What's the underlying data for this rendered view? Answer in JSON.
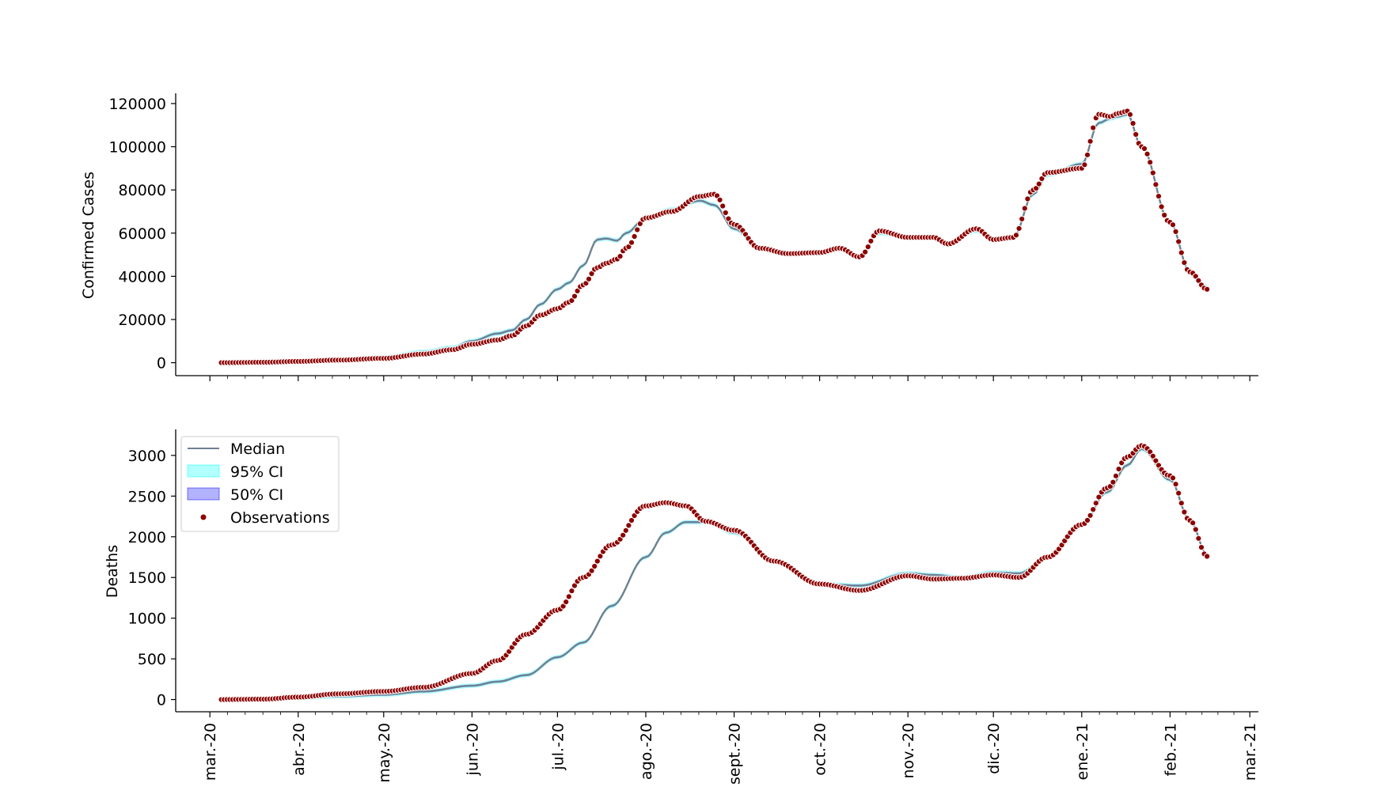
{
  "chart_data": [
    {
      "type": "line",
      "ylabel": "Confirmed Cases",
      "ylim": [
        -6000,
        124000
      ],
      "yticks": [
        0,
        20000,
        40000,
        60000,
        80000,
        100000,
        120000
      ],
      "ytick_labels": [
        "0",
        "20000",
        "40000",
        "60000",
        "80000",
        "100000",
        "120000"
      ],
      "colors": {
        "median": "#708090",
        "ci95": "#00ffff",
        "ci50": "#0000ff",
        "observations": "#8b0000"
      },
      "series": [
        {
          "name": "Median",
          "x": [
            "2020-03-05",
            "2020-03-20",
            "2020-04-01",
            "2020-04-15",
            "2020-05-01",
            "2020-05-15",
            "2020-05-25",
            "2020-06-01",
            "2020-06-10",
            "2020-06-15",
            "2020-06-20",
            "2020-06-25",
            "2020-07-01",
            "2020-07-05",
            "2020-07-10",
            "2020-07-15",
            "2020-07-18",
            "2020-07-22",
            "2020-07-25",
            "2020-08-01",
            "2020-08-10",
            "2020-08-20",
            "2020-08-25",
            "2020-09-01",
            "2020-09-10",
            "2020-09-20",
            "2020-10-01",
            "2020-10-08",
            "2020-10-15",
            "2020-10-22",
            "2020-11-01",
            "2020-11-10",
            "2020-11-15",
            "2020-11-25",
            "2020-12-01",
            "2020-12-08",
            "2020-12-15",
            "2020-12-20",
            "2021-01-01",
            "2021-01-07",
            "2021-01-11",
            "2021-01-14",
            "2021-01-17",
            "2021-01-22",
            "2021-02-01",
            "2021-02-08",
            "2021-02-14"
          ],
          "y": [
            0,
            200,
            700,
            1500,
            2500,
            5000,
            7000,
            10000,
            13500,
            15000,
            20000,
            27000,
            34000,
            37000,
            45000,
            57000,
            57500,
            56500,
            60000,
            67000,
            71000,
            75000,
            73000,
            62000,
            53000,
            50500,
            50500,
            53000,
            49000,
            60000,
            58000,
            58000,
            55000,
            61000,
            57000,
            58000,
            78000,
            87000,
            92000,
            111000,
            113000,
            114000,
            115000,
            100000,
            65000,
            42000,
            35000
          ]
        },
        {
          "name": "Observations",
          "x": [
            "2020-03-05",
            "2020-03-20",
            "2020-04-01",
            "2020-04-15",
            "2020-05-01",
            "2020-05-15",
            "2020-05-25",
            "2020-06-01",
            "2020-06-10",
            "2020-06-15",
            "2020-06-20",
            "2020-06-25",
            "2020-07-01",
            "2020-07-05",
            "2020-07-10",
            "2020-07-15",
            "2020-07-18",
            "2020-07-22",
            "2020-07-25",
            "2020-08-01",
            "2020-08-10",
            "2020-08-20",
            "2020-08-25",
            "2020-09-01",
            "2020-09-10",
            "2020-09-20",
            "2020-10-01",
            "2020-10-08",
            "2020-10-15",
            "2020-10-22",
            "2020-11-01",
            "2020-11-10",
            "2020-11-15",
            "2020-11-25",
            "2020-12-01",
            "2020-12-08",
            "2020-12-15",
            "2020-12-20",
            "2021-01-01",
            "2021-01-07",
            "2021-01-11",
            "2021-01-14",
            "2021-01-17",
            "2021-01-22",
            "2021-02-01",
            "2021-02-08",
            "2021-02-14"
          ],
          "y": [
            0,
            200,
            600,
            1200,
            2000,
            4000,
            6000,
            8500,
            10500,
            12500,
            17000,
            22000,
            25000,
            28000,
            36000,
            44000,
            46000,
            48000,
            53000,
            67000,
            70000,
            77000,
            78000,
            64000,
            53000,
            50500,
            51000,
            53000,
            49000,
            61000,
            58000,
            58000,
            55000,
            62000,
            57000,
            58000,
            80000,
            88000,
            90000,
            115000,
            114000,
            115500,
            116500,
            100000,
            65000,
            42000,
            34000
          ]
        }
      ]
    },
    {
      "type": "line",
      "ylabel": "Deaths",
      "ylim": [
        -150,
        3300
      ],
      "yticks": [
        0,
        500,
        1000,
        1500,
        2000,
        2500,
        3000
      ],
      "ytick_labels": [
        "0",
        "500",
        "1000",
        "1500",
        "2000",
        "2500",
        "3000"
      ],
      "xlim": [
        "2020-02-18",
        "2021-03-04"
      ],
      "xticks": [
        "2020-03-01",
        "2020-04-01",
        "2020-05-01",
        "2020-06-01",
        "2020-07-01",
        "2020-08-01",
        "2020-09-01",
        "2020-10-01",
        "2020-11-01",
        "2020-12-01",
        "2021-01-01",
        "2021-02-01",
        "2021-03-01"
      ],
      "xtick_labels": [
        "mar.-20",
        "abr.-20",
        "may.-20",
        "jun.-20",
        "jul.-20",
        "ago.-20",
        "sept.-20",
        "oct.-20",
        "nov.-20",
        "dic.-20",
        "ene.-21",
        "feb.-21",
        "mar.-21"
      ],
      "legend": {
        "placement": "upper-left",
        "entries": [
          "Median",
          "95% CI",
          "50% CI",
          "Observations"
        ]
      },
      "series": [
        {
          "name": "Median",
          "x": [
            "2020-03-05",
            "2020-03-20",
            "2020-04-01",
            "2020-04-15",
            "2020-05-01",
            "2020-05-15",
            "2020-06-01",
            "2020-06-10",
            "2020-06-20",
            "2020-07-01",
            "2020-07-10",
            "2020-07-20",
            "2020-08-01",
            "2020-08-08",
            "2020-08-15",
            "2020-08-22",
            "2020-09-01",
            "2020-09-15",
            "2020-10-01",
            "2020-10-15",
            "2020-11-01",
            "2020-11-10",
            "2020-11-20",
            "2020-12-01",
            "2020-12-10",
            "2020-12-20",
            "2021-01-01",
            "2021-01-10",
            "2021-01-17",
            "2021-01-22",
            "2021-02-01",
            "2021-02-08",
            "2021-02-14"
          ],
          "y": [
            0,
            5,
            20,
            40,
            60,
            100,
            170,
            220,
            300,
            520,
            700,
            1150,
            1750,
            2050,
            2180,
            2180,
            2050,
            1700,
            1420,
            1400,
            1550,
            1530,
            1500,
            1560,
            1550,
            1750,
            2150,
            2550,
            2880,
            3080,
            2700,
            2200,
            1780
          ]
        },
        {
          "name": "Observations",
          "x": [
            "2020-03-05",
            "2020-03-20",
            "2020-04-01",
            "2020-04-15",
            "2020-05-01",
            "2020-05-15",
            "2020-06-01",
            "2020-06-10",
            "2020-06-20",
            "2020-07-01",
            "2020-07-10",
            "2020-07-20",
            "2020-08-01",
            "2020-08-08",
            "2020-08-15",
            "2020-08-22",
            "2020-09-01",
            "2020-09-15",
            "2020-10-01",
            "2020-10-15",
            "2020-11-01",
            "2020-11-10",
            "2020-11-20",
            "2020-12-01",
            "2020-12-10",
            "2020-12-20",
            "2021-01-01",
            "2021-01-10",
            "2021-01-17",
            "2021-01-22",
            "2021-02-01",
            "2021-02-08",
            "2021-02-14"
          ],
          "y": [
            0,
            5,
            30,
            70,
            100,
            150,
            320,
            480,
            800,
            1100,
            1500,
            1900,
            2380,
            2420,
            2380,
            2190,
            2080,
            1700,
            1420,
            1340,
            1520,
            1480,
            1490,
            1530,
            1500,
            1750,
            2150,
            2600,
            2980,
            3120,
            2750,
            2200,
            1760
          ]
        }
      ]
    }
  ]
}
